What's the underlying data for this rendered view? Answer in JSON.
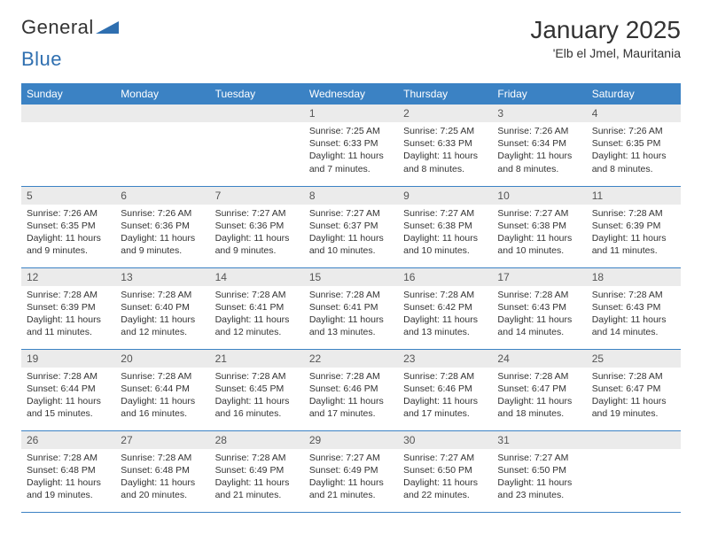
{
  "brand": {
    "part1": "General",
    "part2": "Blue"
  },
  "title": "January 2025",
  "location": "'Elb el Jmel, Mauritania",
  "colors": {
    "header_bg": "#3b82c4",
    "header_text": "#ffffff",
    "daynum_bg": "#ebebeb",
    "row_border": "#3b82c4",
    "logo_shape": "#2f6fb0"
  },
  "dayHeaders": [
    "Sunday",
    "Monday",
    "Tuesday",
    "Wednesday",
    "Thursday",
    "Friday",
    "Saturday"
  ],
  "weeks": [
    [
      null,
      null,
      null,
      {
        "n": "1",
        "sunrise": "7:25 AM",
        "sunset": "6:33 PM",
        "daylight": "11 hours and 7 minutes."
      },
      {
        "n": "2",
        "sunrise": "7:25 AM",
        "sunset": "6:33 PM",
        "daylight": "11 hours and 8 minutes."
      },
      {
        "n": "3",
        "sunrise": "7:26 AM",
        "sunset": "6:34 PM",
        "daylight": "11 hours and 8 minutes."
      },
      {
        "n": "4",
        "sunrise": "7:26 AM",
        "sunset": "6:35 PM",
        "daylight": "11 hours and 8 minutes."
      }
    ],
    [
      {
        "n": "5",
        "sunrise": "7:26 AM",
        "sunset": "6:35 PM",
        "daylight": "11 hours and 9 minutes."
      },
      {
        "n": "6",
        "sunrise": "7:26 AM",
        "sunset": "6:36 PM",
        "daylight": "11 hours and 9 minutes."
      },
      {
        "n": "7",
        "sunrise": "7:27 AM",
        "sunset": "6:36 PM",
        "daylight": "11 hours and 9 minutes."
      },
      {
        "n": "8",
        "sunrise": "7:27 AM",
        "sunset": "6:37 PM",
        "daylight": "11 hours and 10 minutes."
      },
      {
        "n": "9",
        "sunrise": "7:27 AM",
        "sunset": "6:38 PM",
        "daylight": "11 hours and 10 minutes."
      },
      {
        "n": "10",
        "sunrise": "7:27 AM",
        "sunset": "6:38 PM",
        "daylight": "11 hours and 10 minutes."
      },
      {
        "n": "11",
        "sunrise": "7:28 AM",
        "sunset": "6:39 PM",
        "daylight": "11 hours and 11 minutes."
      }
    ],
    [
      {
        "n": "12",
        "sunrise": "7:28 AM",
        "sunset": "6:39 PM",
        "daylight": "11 hours and 11 minutes."
      },
      {
        "n": "13",
        "sunrise": "7:28 AM",
        "sunset": "6:40 PM",
        "daylight": "11 hours and 12 minutes."
      },
      {
        "n": "14",
        "sunrise": "7:28 AM",
        "sunset": "6:41 PM",
        "daylight": "11 hours and 12 minutes."
      },
      {
        "n": "15",
        "sunrise": "7:28 AM",
        "sunset": "6:41 PM",
        "daylight": "11 hours and 13 minutes."
      },
      {
        "n": "16",
        "sunrise": "7:28 AM",
        "sunset": "6:42 PM",
        "daylight": "11 hours and 13 minutes."
      },
      {
        "n": "17",
        "sunrise": "7:28 AM",
        "sunset": "6:43 PM",
        "daylight": "11 hours and 14 minutes."
      },
      {
        "n": "18",
        "sunrise": "7:28 AM",
        "sunset": "6:43 PM",
        "daylight": "11 hours and 14 minutes."
      }
    ],
    [
      {
        "n": "19",
        "sunrise": "7:28 AM",
        "sunset": "6:44 PM",
        "daylight": "11 hours and 15 minutes."
      },
      {
        "n": "20",
        "sunrise": "7:28 AM",
        "sunset": "6:44 PM",
        "daylight": "11 hours and 16 minutes."
      },
      {
        "n": "21",
        "sunrise": "7:28 AM",
        "sunset": "6:45 PM",
        "daylight": "11 hours and 16 minutes."
      },
      {
        "n": "22",
        "sunrise": "7:28 AM",
        "sunset": "6:46 PM",
        "daylight": "11 hours and 17 minutes."
      },
      {
        "n": "23",
        "sunrise": "7:28 AM",
        "sunset": "6:46 PM",
        "daylight": "11 hours and 17 minutes."
      },
      {
        "n": "24",
        "sunrise": "7:28 AM",
        "sunset": "6:47 PM",
        "daylight": "11 hours and 18 minutes."
      },
      {
        "n": "25",
        "sunrise": "7:28 AM",
        "sunset": "6:47 PM",
        "daylight": "11 hours and 19 minutes."
      }
    ],
    [
      {
        "n": "26",
        "sunrise": "7:28 AM",
        "sunset": "6:48 PM",
        "daylight": "11 hours and 19 minutes."
      },
      {
        "n": "27",
        "sunrise": "7:28 AM",
        "sunset": "6:48 PM",
        "daylight": "11 hours and 20 minutes."
      },
      {
        "n": "28",
        "sunrise": "7:28 AM",
        "sunset": "6:49 PM",
        "daylight": "11 hours and 21 minutes."
      },
      {
        "n": "29",
        "sunrise": "7:27 AM",
        "sunset": "6:49 PM",
        "daylight": "11 hours and 21 minutes."
      },
      {
        "n": "30",
        "sunrise": "7:27 AM",
        "sunset": "6:50 PM",
        "daylight": "11 hours and 22 minutes."
      },
      {
        "n": "31",
        "sunrise": "7:27 AM",
        "sunset": "6:50 PM",
        "daylight": "11 hours and 23 minutes."
      },
      null
    ]
  ],
  "labels": {
    "sunrise": "Sunrise:",
    "sunset": "Sunset:",
    "daylight": "Daylight:"
  }
}
